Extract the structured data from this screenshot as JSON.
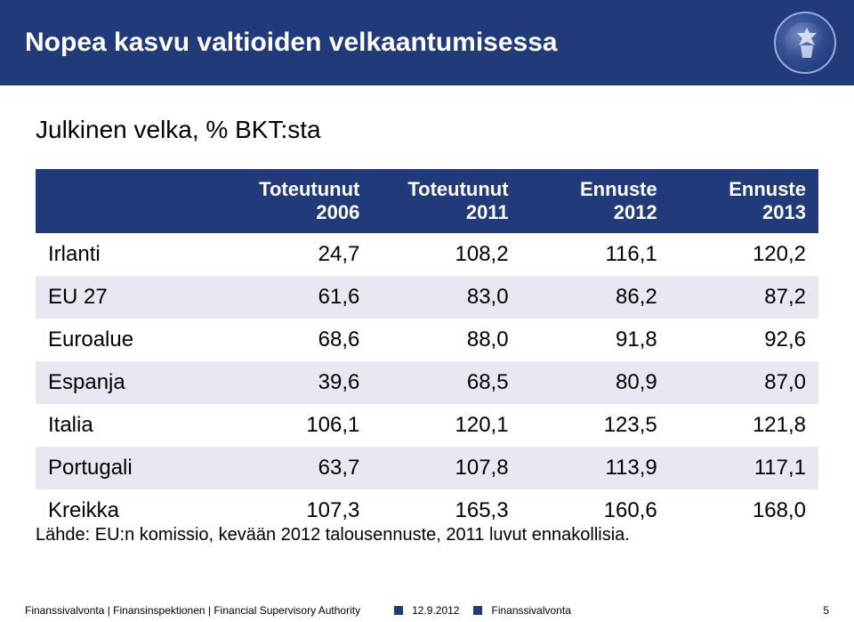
{
  "header": {
    "title": "Nopea kasvu valtioiden velkaantumisessa",
    "bg_color": "#213a7a",
    "text_color": "#ffffff"
  },
  "subtitle": "Julkinen velka, % BKT:sta",
  "table": {
    "type": "table",
    "header_bg": "#213a7a",
    "header_text_color": "#ffffff",
    "alt_row_bg": "#e6e9f2",
    "font_size_header": 22,
    "font_size_cell": 24,
    "columns": [
      {
        "label": "",
        "align": "left",
        "width_pct": 24
      },
      {
        "label": "Toteutunut 2006",
        "align": "right",
        "width_pct": 19
      },
      {
        "label": "Toteutunut 2011",
        "align": "right",
        "width_pct": 19
      },
      {
        "label": "Ennuste 2012",
        "align": "right",
        "width_pct": 19
      },
      {
        "label": "Ennuste 2013",
        "align": "right",
        "width_pct": 19
      }
    ],
    "rows": [
      {
        "label": "Irlanti",
        "v": [
          "24,7",
          "108,2",
          "116,1",
          "120,2"
        ]
      },
      {
        "label": "EU 27",
        "v": [
          "61,6",
          "83,0",
          "86,2",
          "87,2"
        ]
      },
      {
        "label": "Euroalue",
        "v": [
          "68,6",
          "88,0",
          "91,8",
          "92,6"
        ]
      },
      {
        "label": "Espanja",
        "v": [
          "39,6",
          "68,5",
          "80,9",
          "87,0"
        ]
      },
      {
        "label": "Italia",
        "v": [
          "106,1",
          "120,1",
          "123,5",
          "121,8"
        ]
      },
      {
        "label": "Portugali",
        "v": [
          "63,7",
          "107,8",
          "113,9",
          "117,1"
        ]
      },
      {
        "label": "Kreikka",
        "v": [
          "107,3",
          "165,3",
          "160,6",
          "168,0"
        ]
      }
    ]
  },
  "source_note": "Lähde: EU:n komissio, kevään 2012 talousennuste, 2011 luvut ennakollisia.",
  "footer": {
    "org": "Finanssivalvonta | Finansinspektionen | Financial Supervisory Authority",
    "date": "12.9.2012",
    "dept": "Finanssivalvonta",
    "page": "5",
    "marker_color": "#213a7a"
  }
}
